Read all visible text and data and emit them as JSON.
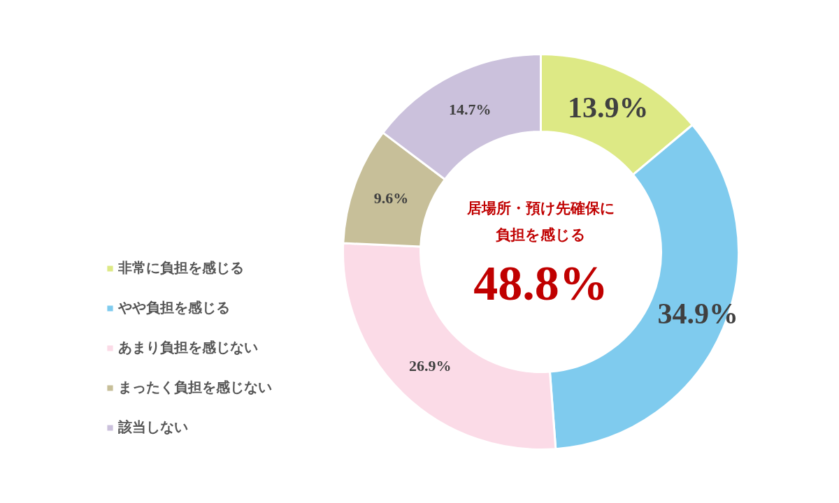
{
  "chart_data": {
    "type": "donut",
    "categories": [
      "非常に負担を感じる",
      "やや負担を感じる",
      "あまり負担を感じない",
      "まったく負担を感じない",
      "該当しない"
    ],
    "values": [
      13.9,
      34.9,
      26.9,
      9.6,
      14.7
    ],
    "colors": [
      "#dde985",
      "#7fcbee",
      "#fbdbe7",
      "#c7bf99",
      "#cbc1dc"
    ],
    "value_labels": [
      "13.9%",
      "34.9%",
      "26.9%",
      "9.6%",
      "14.7%"
    ],
    "annotations": [
      "居場所・預け先確保に",
      "負担を感じる",
      "48.8%"
    ],
    "legend": "left"
  }
}
